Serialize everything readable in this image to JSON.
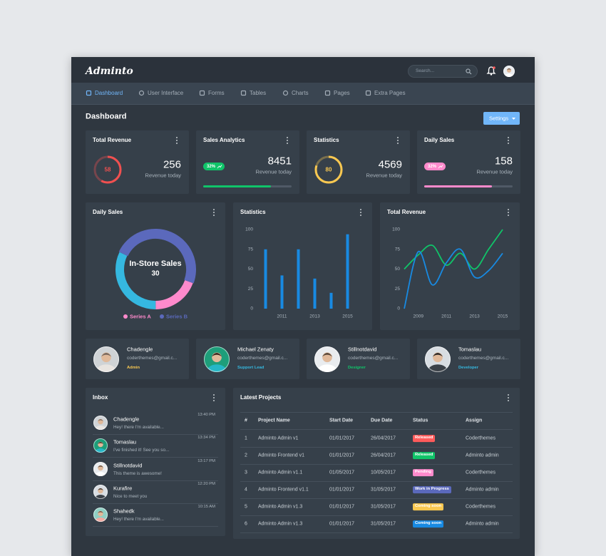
{
  "header": {
    "brand": "Adminto",
    "search_placeholder": "Search..."
  },
  "nav": {
    "items": [
      "Dashboard",
      "User Interface",
      "Forms",
      "Tables",
      "Charts",
      "Pages",
      "Extra Pages"
    ],
    "active": 0
  },
  "page": {
    "title": "Dashboard",
    "settings_button": "Settings"
  },
  "stat_cards": [
    {
      "title": "Total Revenue",
      "ring_value": 58,
      "ring_color": "#f05050",
      "value": 256,
      "caption": "Revenue today"
    },
    {
      "title": "Sales Analytics",
      "badge": "32%",
      "badge_color": "#10c469",
      "value": 8451,
      "caption": "Revenue today",
      "progress": 77,
      "progress_color": "#10c469"
    },
    {
      "title": "Statistics",
      "ring_value": 80,
      "ring_color": "#f9c851",
      "value": 4569,
      "caption": "Revenue today"
    },
    {
      "title": "Daily Sales",
      "badge": "32%",
      "badge_color": "#ff8acc",
      "value": 158,
      "caption": "Revenue today",
      "progress": 77,
      "progress_color": "#ff8acc"
    }
  ],
  "chart_data": [
    {
      "type": "donut",
      "title": "Daily Sales",
      "categories": [
        null,
        null,
        "In-Store Sales"
      ],
      "values": [
        12,
        20,
        30
      ],
      "colors": [
        "#ff8acc",
        "#35b8e0",
        "#5b69bc"
      ],
      "highlight": 2,
      "legend": [
        {
          "name": "Series A",
          "color": "#ff8acc"
        },
        {
          "name": "Series B",
          "color": "#5b69bc"
        }
      ]
    },
    {
      "type": "bar",
      "title": "Statistics",
      "categories": [
        null,
        "2011",
        null,
        "2013",
        null,
        "2015"
      ],
      "values": [
        75,
        42,
        75,
        38,
        20,
        94
      ],
      "color": "#188ae2",
      "ylim": [
        0,
        100
      ],
      "yticks": [
        0,
        25,
        50,
        75,
        100
      ]
    },
    {
      "type": "line",
      "title": "Total Revenue",
      "x": [
        2008,
        2009,
        2010,
        2011,
        2012,
        2013,
        2014,
        2015
      ],
      "xlim": [
        2008,
        2015
      ],
      "xticks": [
        2009,
        2011,
        2013,
        2015
      ],
      "ylim": [
        0,
        100
      ],
      "yticks": [
        0,
        25,
        50,
        75,
        100
      ],
      "series": [
        {
          "color": "#10c469",
          "values": [
            50,
            68,
            80,
            55,
            70,
            50,
            75,
            100
          ]
        },
        {
          "color": "#188ae2",
          "values": [
            0,
            72,
            30,
            58,
            75,
            40,
            48,
            70
          ]
        }
      ]
    }
  ],
  "users": [
    {
      "name": "Chadengle",
      "email": "coderthemes@gmail.c...",
      "role": "Admin",
      "role_color": "#f9c851"
    },
    {
      "name": "Michael Zenaty",
      "email": "coderthemes@gmail.c...",
      "role": "Support Lead",
      "role_color": "#35b8e0"
    },
    {
      "name": "Stillnotdavid",
      "email": "coderthemes@gmail.c...",
      "role": "Designer",
      "role_color": "#10c469"
    },
    {
      "name": "Tomaslau",
      "email": "coderthemes@gmail.c...",
      "role": "Developer",
      "role_color": "#35b8e0"
    }
  ],
  "inbox": {
    "title": "Inbox",
    "messages": [
      {
        "name": "Chadengle",
        "text": "Hey! there I'm available...",
        "time": "13:40 PM"
      },
      {
        "name": "Tomaslau",
        "text": "I've finished it! See you so...",
        "time": "13:34 PM"
      },
      {
        "name": "Stillnotdavid",
        "text": "This theme is awesome!",
        "time": "13:17 PM"
      },
      {
        "name": "Kurafire",
        "text": "Nice to meet you",
        "time": "12:20 PM"
      },
      {
        "name": "Shahedk",
        "text": "Hey! there I'm available...",
        "time": "10:15 AM"
      }
    ]
  },
  "projects": {
    "title": "Latest Projects",
    "columns": [
      "#",
      "Project Name",
      "Start Date",
      "Due Date",
      "Status",
      "Assign"
    ],
    "rows": [
      [
        1,
        "Adminto Admin v1",
        "01/01/2017",
        "26/04/2017",
        "Released",
        "Coderthemes"
      ],
      [
        2,
        "Adminto Frontend v1",
        "01/01/2017",
        "26/04/2017",
        "Released",
        "Adminto admin"
      ],
      [
        3,
        "Adminto Admin v1.1",
        "01/05/2017",
        "10/05/2017",
        "Pending",
        "Coderthemes"
      ],
      [
        4,
        "Adminto Frontend v1.1",
        "01/01/2017",
        "31/05/2017",
        "Work in Progress",
        "Adminto admin"
      ],
      [
        5,
        "Adminto Admin v1.3",
        "01/01/2017",
        "31/05/2017",
        "Coming soon",
        "Coderthemes"
      ],
      [
        6,
        "Adminto Admin v1.3",
        "01/01/2017",
        "31/05/2017",
        "Coming soon",
        "Adminto admin"
      ]
    ],
    "status_colors": [
      "#ff5b5b",
      "#10c469",
      "#ff8acc",
      "#5b69bc",
      "#f9c851",
      "#188ae2"
    ]
  }
}
